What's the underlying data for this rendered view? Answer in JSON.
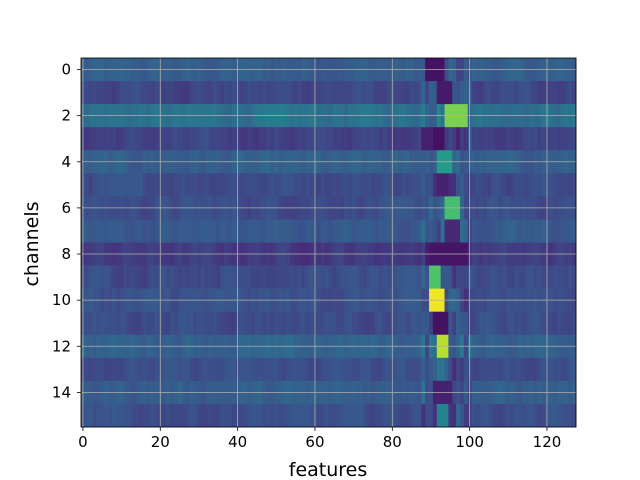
{
  "chart_data": {
    "type": "heatmap",
    "title": "",
    "xlabel": "features",
    "ylabel": "channels",
    "xlim": [
      -0.5,
      127.5
    ],
    "ylim": [
      15.5,
      -0.5
    ],
    "n_rows": 16,
    "n_cols": 128,
    "colormap": "viridis",
    "value_range": [
      0,
      1
    ],
    "grid": true,
    "x_ticks": [
      0,
      20,
      40,
      60,
      80,
      100,
      120
    ],
    "x_tick_labels": [
      "0",
      "20",
      "40",
      "60",
      "80",
      "100",
      "120"
    ],
    "y_ticks": [
      0,
      2,
      4,
      6,
      8,
      10,
      12,
      14
    ],
    "y_tick_labels": [
      "0",
      "2",
      "4",
      "6",
      "8",
      "10",
      "12",
      "14"
    ],
    "row_baseline": [
      0.3,
      0.22,
      0.38,
      0.2,
      0.3,
      0.24,
      0.24,
      0.28,
      0.18,
      0.24,
      0.25,
      0.24,
      0.32,
      0.24,
      0.3,
      0.24
    ],
    "hotspots": [
      {
        "row": 0,
        "col_start": 89,
        "col_end": 93,
        "value": 0.05
      },
      {
        "row": 1,
        "col_start": 92,
        "col_end": 95,
        "value": 0.08
      },
      {
        "row": 2,
        "col_start": 94,
        "col_end": 99,
        "value": 0.8
      },
      {
        "row": 3,
        "col_start": 91,
        "col_end": 93,
        "value": 0.05
      },
      {
        "row": 4,
        "col_start": 92,
        "col_end": 95,
        "value": 0.55
      },
      {
        "row": 5,
        "col_start": 92,
        "col_end": 94,
        "value": 0.1
      },
      {
        "row": 6,
        "col_start": 94,
        "col_end": 97,
        "value": 0.7
      },
      {
        "row": 7,
        "col_start": 94,
        "col_end": 97,
        "value": 0.12
      },
      {
        "row": 8,
        "col_start": 90,
        "col_end": 99,
        "value": 0.06
      },
      {
        "row": 9,
        "col_start": 90,
        "col_end": 92,
        "value": 0.72
      },
      {
        "row": 10,
        "col_start": 90,
        "col_end": 93,
        "value": 0.98
      },
      {
        "row": 11,
        "col_start": 91,
        "col_end": 94,
        "value": 0.05
      },
      {
        "row": 12,
        "col_start": 92,
        "col_end": 94,
        "value": 0.9
      },
      {
        "row": 13,
        "col_start": 92,
        "col_end": 93,
        "value": 0.4
      },
      {
        "row": 14,
        "col_start": 91,
        "col_end": 95,
        "value": 0.1
      },
      {
        "row": 15,
        "col_start": 92,
        "col_end": 94,
        "value": 0.45
      }
    ]
  }
}
